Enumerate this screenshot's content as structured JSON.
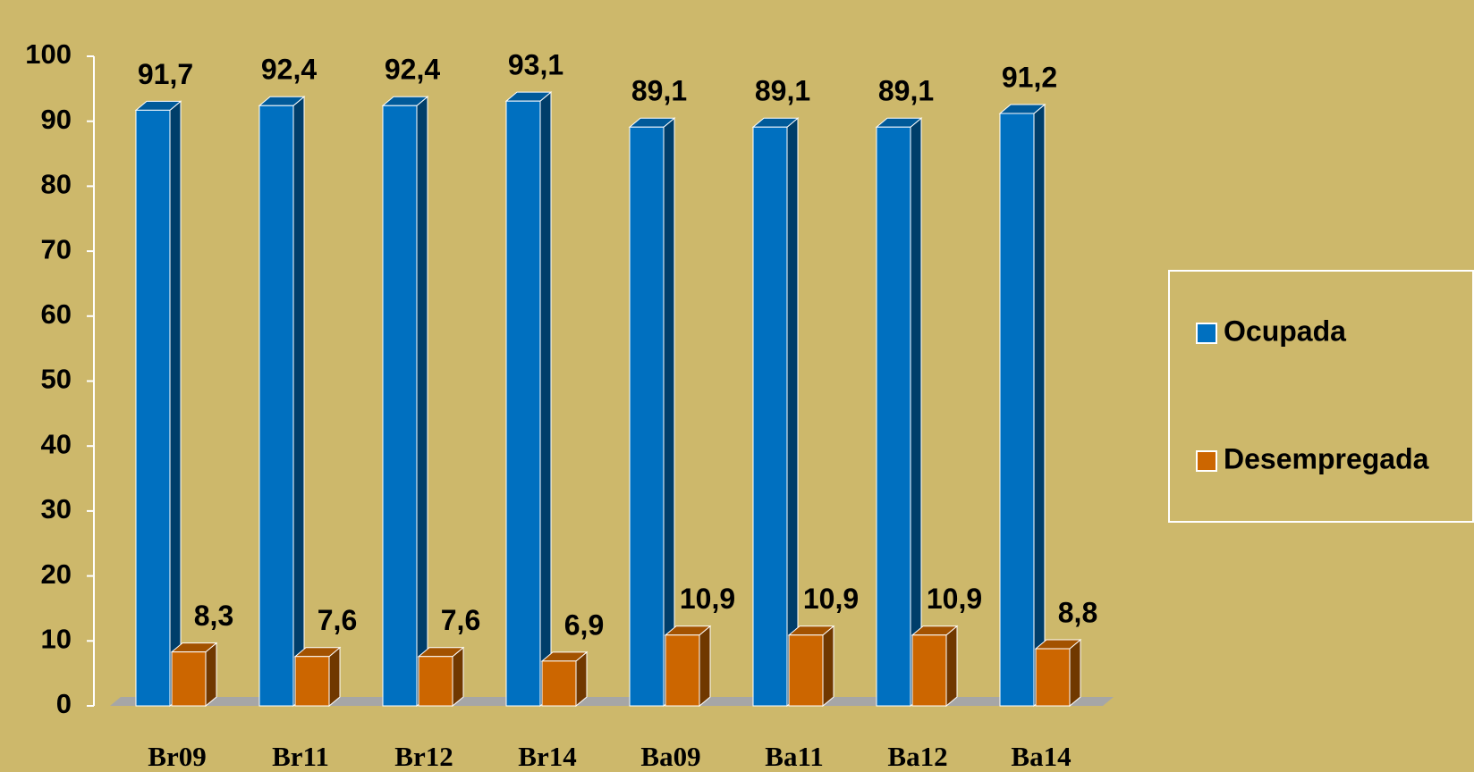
{
  "chart_data": {
    "type": "bar3d",
    "categories": [
      "Br09",
      "Br11",
      "Br12",
      "Br14",
      "Ba09",
      "Ba11",
      "Ba12",
      "Ba14"
    ],
    "series": [
      {
        "name": "Ocupada",
        "color": "#0070c0",
        "values": [
          91.7,
          92.4,
          92.4,
          93.1,
          89.1,
          89.1,
          89.1,
          91.2
        ],
        "value_labels": [
          "91,7",
          "92,4",
          "92,4",
          "93,1",
          "89,1",
          "89,1",
          "89,1",
          "91,2"
        ]
      },
      {
        "name": "Desempregada",
        "color": "#cc6600",
        "values": [
          8.3,
          7.6,
          7.6,
          6.9,
          10.9,
          10.9,
          10.9,
          8.8
        ],
        "value_labels": [
          "8,3",
          "7,6",
          "7,6",
          "6,9",
          "10,9",
          "10,9",
          "10,9",
          "8,8"
        ]
      }
    ],
    "ylim": [
      0,
      100
    ],
    "yticks": [
      0,
      10,
      20,
      30,
      40,
      50,
      60,
      70,
      80,
      90,
      100
    ],
    "grid": false,
    "legend": "right"
  }
}
